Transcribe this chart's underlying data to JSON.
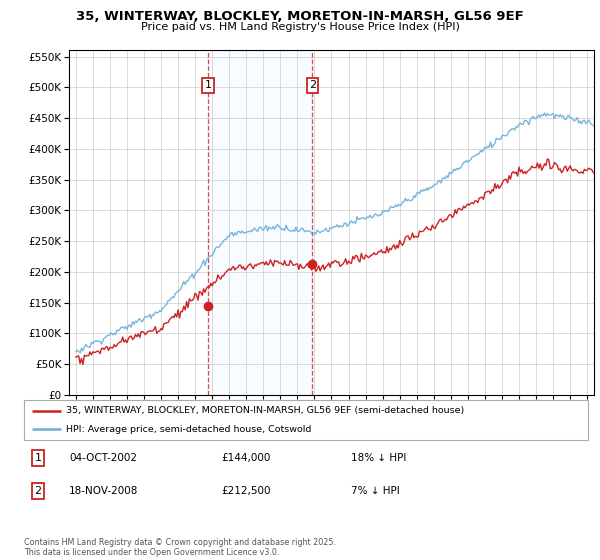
{
  "title": "35, WINTERWAY, BLOCKLEY, MORETON-IN-MARSH, GL56 9EF",
  "subtitle": "Price paid vs. HM Land Registry's House Price Index (HPI)",
  "legend_line1": "35, WINTERWAY, BLOCKLEY, MORETON-IN-MARSH, GL56 9EF (semi-detached house)",
  "legend_line2": "HPI: Average price, semi-detached house, Cotswold",
  "footer": "Contains HM Land Registry data © Crown copyright and database right 2025.\nThis data is licensed under the Open Government Licence v3.0.",
  "sale1_date": "04-OCT-2002",
  "sale1_price": 144000,
  "sale1_note": "18% ↓ HPI",
  "sale2_date": "18-NOV-2008",
  "sale2_price": 212500,
  "sale2_note": "7% ↓ HPI",
  "sale1_x": 2002.75,
  "sale2_x": 2008.88,
  "hpi_color": "#6aaed6",
  "price_color": "#cc2222",
  "marker_box_color": "#cc2222",
  "vline_color": "#cc2222",
  "bg_highlight_color": "#ddeeff",
  "ylim": [
    0,
    560000
  ],
  "xlim_start": 1994.6,
  "xlim_end": 2025.4,
  "yticks": [
    0,
    50000,
    100000,
    150000,
    200000,
    250000,
    300000,
    350000,
    400000,
    450000,
    500000,
    550000
  ],
  "marker_y": 503000
}
